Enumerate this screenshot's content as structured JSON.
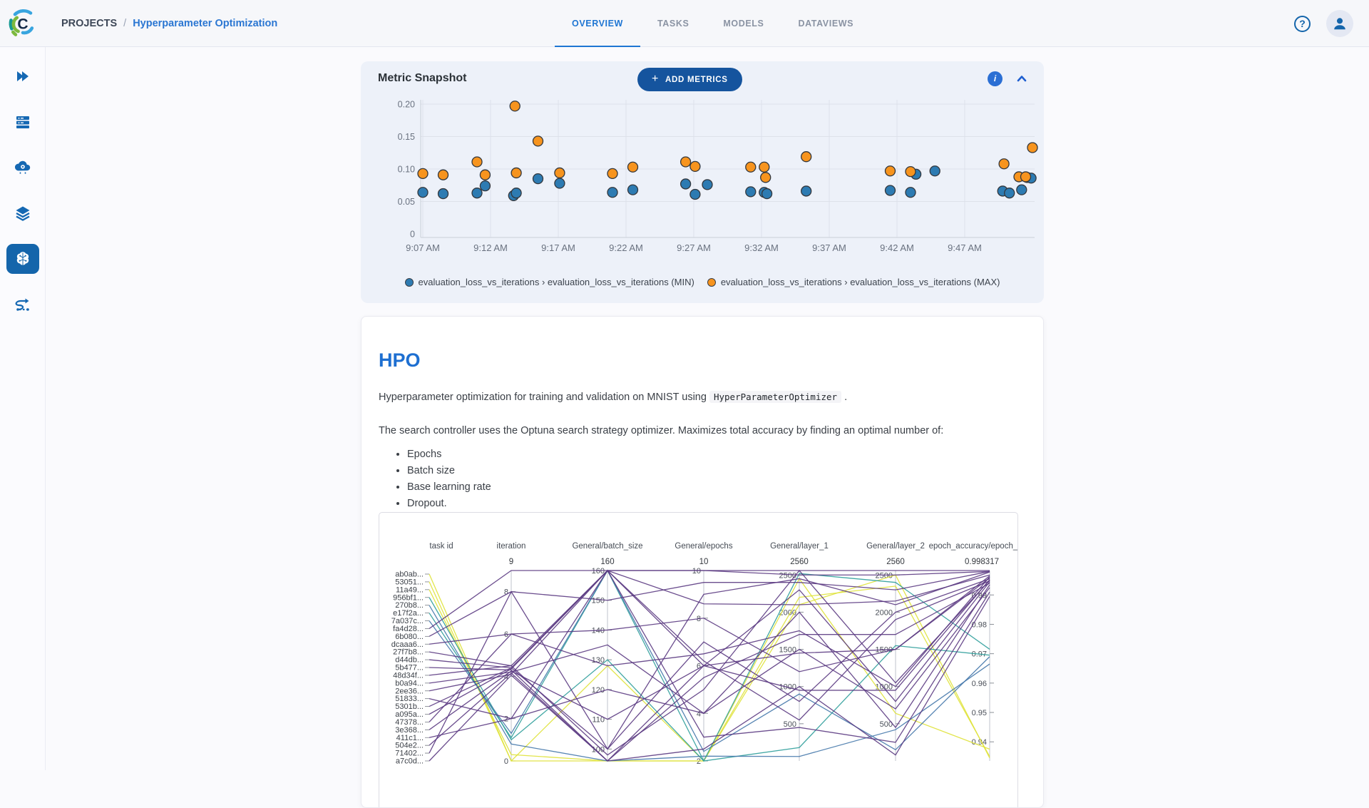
{
  "header": {
    "breadcrumb": {
      "root": "PROJECTS",
      "separator": "/",
      "current": "Hyperparameter Optimization"
    },
    "tabs": [
      {
        "label": "OVERVIEW",
        "active": true
      },
      {
        "label": "TASKS",
        "active": false
      },
      {
        "label": "MODELS",
        "active": false
      },
      {
        "label": "DATAVIEWS",
        "active": false
      }
    ],
    "help_icon": "question-mark-circle",
    "user_icon": "person-avatar"
  },
  "sidebar": {
    "items": [
      {
        "icon": "projects-chevrons"
      },
      {
        "icon": "workers-queues-server"
      },
      {
        "icon": "applications-cloud-gear"
      },
      {
        "icon": "datasets-layers"
      },
      {
        "icon": "ml-brain",
        "active": true
      },
      {
        "icon": "pipelines-route"
      }
    ]
  },
  "metric_snapshot": {
    "title": "Metric Snapshot",
    "add_button": {
      "plus": "+",
      "label": "ADD METRICS"
    },
    "info_icon": "i",
    "collapse_icon": "chevron-up",
    "legend": [
      {
        "label": "evaluation_loss_vs_iterations › evaluation_loss_vs_iterations (MIN)",
        "color": "#2d7bb2"
      },
      {
        "label": "evaluation_loss_vs_iterations › evaluation_loss_vs_iterations (MAX)",
        "color": "#f7941e"
      }
    ]
  },
  "hpo": {
    "title": "HPO",
    "p1_prefix": "Hyperparameter optimization for training and validation on MNIST using ",
    "code": "HyperParameterOptimizer",
    "p1_suffix": " .",
    "p2": "The search controller uses the Optuna search strategy optimizer. Maximizes total accuracy by finding an optimal number of:",
    "bullets": [
      "Epochs",
      "Batch size",
      "Base learning rate",
      "Dropout."
    ]
  },
  "chart_data": [
    {
      "type": "scatter",
      "title": "Metric Snapshot",
      "xlabel": "",
      "ylabel": "",
      "x_axis": {
        "ticks": [
          {
            "t": 7,
            "label": "9:07 AM"
          },
          {
            "t": 12,
            "label": "9:12 AM"
          },
          {
            "t": 17,
            "label": "9:17 AM"
          },
          {
            "t": 22,
            "label": "9:22 AM"
          },
          {
            "t": 27,
            "label": "9:27 AM"
          },
          {
            "t": 32,
            "label": "9:32 AM"
          },
          {
            "t": 37,
            "label": "9:37 AM"
          },
          {
            "t": 42,
            "label": "9:42 AM"
          },
          {
            "t": 47,
            "label": "9:47 AM"
          }
        ]
      },
      "y_axis": {
        "min": 0,
        "max": 0.2,
        "ticks": [
          {
            "v": 0,
            "label": "0"
          },
          {
            "v": 0.05,
            "label": "0.05"
          },
          {
            "v": 0.1,
            "label": "0.10"
          },
          {
            "v": 0.15,
            "label": "0.15"
          },
          {
            "v": 0.2,
            "label": "0.20"
          }
        ]
      },
      "series": [
        {
          "name": "evaluation_loss_vs_iterations › evaluation_loss_vs_iterations (MIN)",
          "color": "#2d7bb2",
          "points": [
            [
              7.0,
              0.064
            ],
            [
              8.5,
              0.062
            ],
            [
              11.0,
              0.063
            ],
            [
              11.6,
              0.074
            ],
            [
              13.7,
              0.059
            ],
            [
              13.9,
              0.063
            ],
            [
              15.5,
              0.085
            ],
            [
              17.1,
              0.078
            ],
            [
              21.0,
              0.064
            ],
            [
              22.5,
              0.068
            ],
            [
              26.4,
              0.077
            ],
            [
              27.1,
              0.061
            ],
            [
              28.0,
              0.076
            ],
            [
              31.2,
              0.065
            ],
            [
              32.2,
              0.064
            ],
            [
              32.4,
              0.062
            ],
            [
              35.3,
              0.066
            ],
            [
              41.5,
              0.067
            ],
            [
              43.0,
              0.064
            ],
            [
              43.4,
              0.092
            ],
            [
              44.8,
              0.097
            ],
            [
              49.8,
              0.066
            ],
            [
              50.3,
              0.063
            ],
            [
              51.2,
              0.068
            ],
            [
              51.6,
              0.087
            ],
            [
              51.9,
              0.086
            ]
          ]
        },
        {
          "name": "evaluation_loss_vs_iterations › evaluation_loss_vs_iterations (MAX)",
          "color": "#f7941e",
          "points": [
            [
              7.0,
              0.093
            ],
            [
              8.5,
              0.091
            ],
            [
              11.0,
              0.111
            ],
            [
              11.6,
              0.091
            ],
            [
              13.8,
              0.197
            ],
            [
              13.9,
              0.094
            ],
            [
              15.5,
              0.143
            ],
            [
              17.1,
              0.094
            ],
            [
              21.0,
              0.093
            ],
            [
              22.5,
              0.103
            ],
            [
              26.4,
              0.111
            ],
            [
              27.1,
              0.104
            ],
            [
              31.2,
              0.103
            ],
            [
              32.2,
              0.103
            ],
            [
              32.3,
              0.087
            ],
            [
              35.3,
              0.119
            ],
            [
              41.5,
              0.097
            ],
            [
              43.0,
              0.096
            ],
            [
              49.9,
              0.108
            ],
            [
              51.0,
              0.088
            ],
            [
              51.5,
              0.088
            ],
            [
              52.0,
              0.133
            ]
          ]
        }
      ]
    },
    {
      "type": "parallel-coordinates",
      "columns": [
        {
          "label": "task id",
          "max_label": ""
        },
        {
          "label": "iteration",
          "max_label": "9"
        },
        {
          "label": "General/batch_size",
          "max_label": "160"
        },
        {
          "label": "General/epochs",
          "max_label": "10"
        },
        {
          "label": "General/layer_1",
          "max_label": "2560"
        },
        {
          "label": "General/layer_2",
          "max_label": "2560"
        },
        {
          "label": "epoch_accuracy/epoch_ac",
          "max_label": "0.998317"
        }
      ],
      "axes": [
        {
          "key": "iteration",
          "min": 0,
          "max": 9,
          "ticks": [
            {
              "v": 0,
              "label": "0"
            },
            {
              "v": 2,
              "label": "2"
            },
            {
              "v": 4,
              "label": "4"
            },
            {
              "v": 6,
              "label": "6"
            },
            {
              "v": 8,
              "label": "8"
            }
          ]
        },
        {
          "key": "batch",
          "min": 96,
          "max": 160,
          "ticks": [
            {
              "v": 100,
              "label": "100"
            },
            {
              "v": 110,
              "label": "110"
            },
            {
              "v": 120,
              "label": "120"
            },
            {
              "v": 130,
              "label": "130"
            },
            {
              "v": 140,
              "label": "140"
            },
            {
              "v": 150,
              "label": "150"
            },
            {
              "v": 160,
              "label": "160"
            }
          ]
        },
        {
          "key": "epochs",
          "min": 2,
          "max": 10,
          "ticks": [
            {
              "v": 2,
              "label": "2"
            },
            {
              "v": 4,
              "label": "4"
            },
            {
              "v": 6,
              "label": "6"
            },
            {
              "v": 8,
              "label": "8"
            },
            {
              "v": 10,
              "label": "10"
            }
          ]
        },
        {
          "key": "layer1",
          "min": 0,
          "max": 2560,
          "ticks": [
            {
              "v": 500,
              "label": "500"
            },
            {
              "v": 1000,
              "label": "1000"
            },
            {
              "v": 1500,
              "label": "1500"
            },
            {
              "v": 2000,
              "label": "2000"
            },
            {
              "v": 2500,
              "label": "2500"
            }
          ]
        },
        {
          "key": "layer2",
          "min": 0,
          "max": 2560,
          "ticks": [
            {
              "v": 500,
              "label": "500"
            },
            {
              "v": 1000,
              "label": "1000"
            },
            {
              "v": 1500,
              "label": "1500"
            },
            {
              "v": 2000,
              "label": "2000"
            },
            {
              "v": 2500,
              "label": "2500"
            }
          ]
        },
        {
          "key": "acc",
          "min": 0.9335,
          "max": 0.998317,
          "ticks": [
            {
              "v": 0.94,
              "label": "0.94"
            },
            {
              "v": 0.95,
              "label": "0.95"
            },
            {
              "v": 0.96,
              "label": "0.96"
            },
            {
              "v": 0.97,
              "label": "0.97"
            },
            {
              "v": 0.98,
              "label": "0.98"
            },
            {
              "v": 0.99,
              "label": "0.99"
            }
          ]
        }
      ],
      "line_colors": {
        "purple": "#5b3a82",
        "teal": "#2f9e9b",
        "blue": "#4578ab",
        "yellow": "#dfe239"
      },
      "lines": [
        {
          "id": "ab0ab...",
          "color": "yellow",
          "values": [
            0,
            128,
            2,
            2100,
            2500,
            0.9345
          ]
        },
        {
          "id": "53051...",
          "color": "yellow",
          "values": [
            0,
            96,
            2,
            2450,
            640,
            0.9375
          ]
        },
        {
          "id": "11a49...",
          "color": "yellow",
          "values": [
            0.3,
            96,
            2,
            2200,
            2350,
            0.935
          ]
        },
        {
          "id": "956bf1...",
          "color": "teal",
          "values": [
            1,
            130,
            2,
            180,
            1550,
            0.9695
          ]
        },
        {
          "id": "270b8...",
          "color": "blue",
          "values": [
            0.8,
            96,
            2.2,
            60,
            420,
            0.9665
          ]
        },
        {
          "id": "e17f2a...",
          "color": "teal",
          "values": [
            1.1,
            160,
            2,
            2520,
            2400,
            0.9715
          ]
        },
        {
          "id": "7a037c...",
          "color": "blue",
          "values": [
            1.3,
            160,
            2.4,
            900,
            150,
            0.969
          ]
        },
        {
          "id": "fa4d28...",
          "color": "purple",
          "values": [
            9,
            160,
            10,
            2560,
            2560,
            0.998317
          ]
        },
        {
          "id": "6b080...",
          "color": "purple",
          "values": [
            8,
            100,
            9,
            2450,
            2100,
            0.9978
          ]
        },
        {
          "id": "dcaaa6...",
          "color": "purple",
          "values": [
            6,
            128,
            6.5,
            1750,
            1000,
            0.9962
          ]
        },
        {
          "id": "27f7b8...",
          "color": "purple",
          "values": [
            4.5,
            160,
            6,
            950,
            950,
            0.9952
          ]
        },
        {
          "id": "d44db...",
          "color": "purple",
          "values": [
            4.4,
            160,
            8.6,
            2100,
            2150,
            0.9968
          ]
        },
        {
          "id": "5b477...",
          "color": "purple",
          "values": [
            4.3,
            96,
            6,
            1450,
            1500,
            0.9958
          ]
        },
        {
          "id": "48d34f...",
          "color": "purple",
          "values": [
            4.5,
            98,
            5,
            2560,
            1050,
            0.995
          ]
        },
        {
          "id": "b0a94...",
          "color": "purple",
          "values": [
            4.2,
            135,
            4,
            2000,
            450,
            0.9935
          ]
        },
        {
          "id": "2ee36...",
          "color": "purple",
          "values": [
            4.1,
            160,
            6.2,
            550,
            1900,
            0.9948
          ]
        },
        {
          "id": "51833...",
          "color": "purple",
          "values": [
            2,
            120,
            4,
            1500,
            700,
            0.9925
          ]
        },
        {
          "id": "5301b...",
          "color": "purple",
          "values": [
            4.4,
            100,
            7,
            800,
            2000,
            0.9955
          ]
        },
        {
          "id": "a095a...",
          "color": "purple",
          "values": [
            4.35,
            160,
            10,
            2500,
            2500,
            0.998
          ]
        },
        {
          "id": "47378...",
          "color": "purple",
          "values": [
            6,
            140,
            8,
            1200,
            1500,
            0.9965
          ]
        },
        {
          "id": "3e368...",
          "color": "purple",
          "values": [
            4.25,
            110,
            6,
            2300,
            800,
            0.9945
          ]
        },
        {
          "id": "411c1...",
          "color": "purple",
          "values": [
            2,
            160,
            3,
            450,
            250,
            0.991
          ]
        },
        {
          "id": "504e2...",
          "color": "purple",
          "values": [
            4.15,
            96,
            5.5,
            1700,
            1700,
            0.994
          ]
        },
        {
          "id": "71402...",
          "color": "purple",
          "values": [
            8,
            150,
            9.5,
            2400,
            2300,
            0.998
          ]
        },
        {
          "id": "a7c0d...",
          "color": "purple",
          "values": [
            4.05,
            96,
            2.5,
            1000,
            80,
            0.9895
          ]
        }
      ]
    }
  ]
}
